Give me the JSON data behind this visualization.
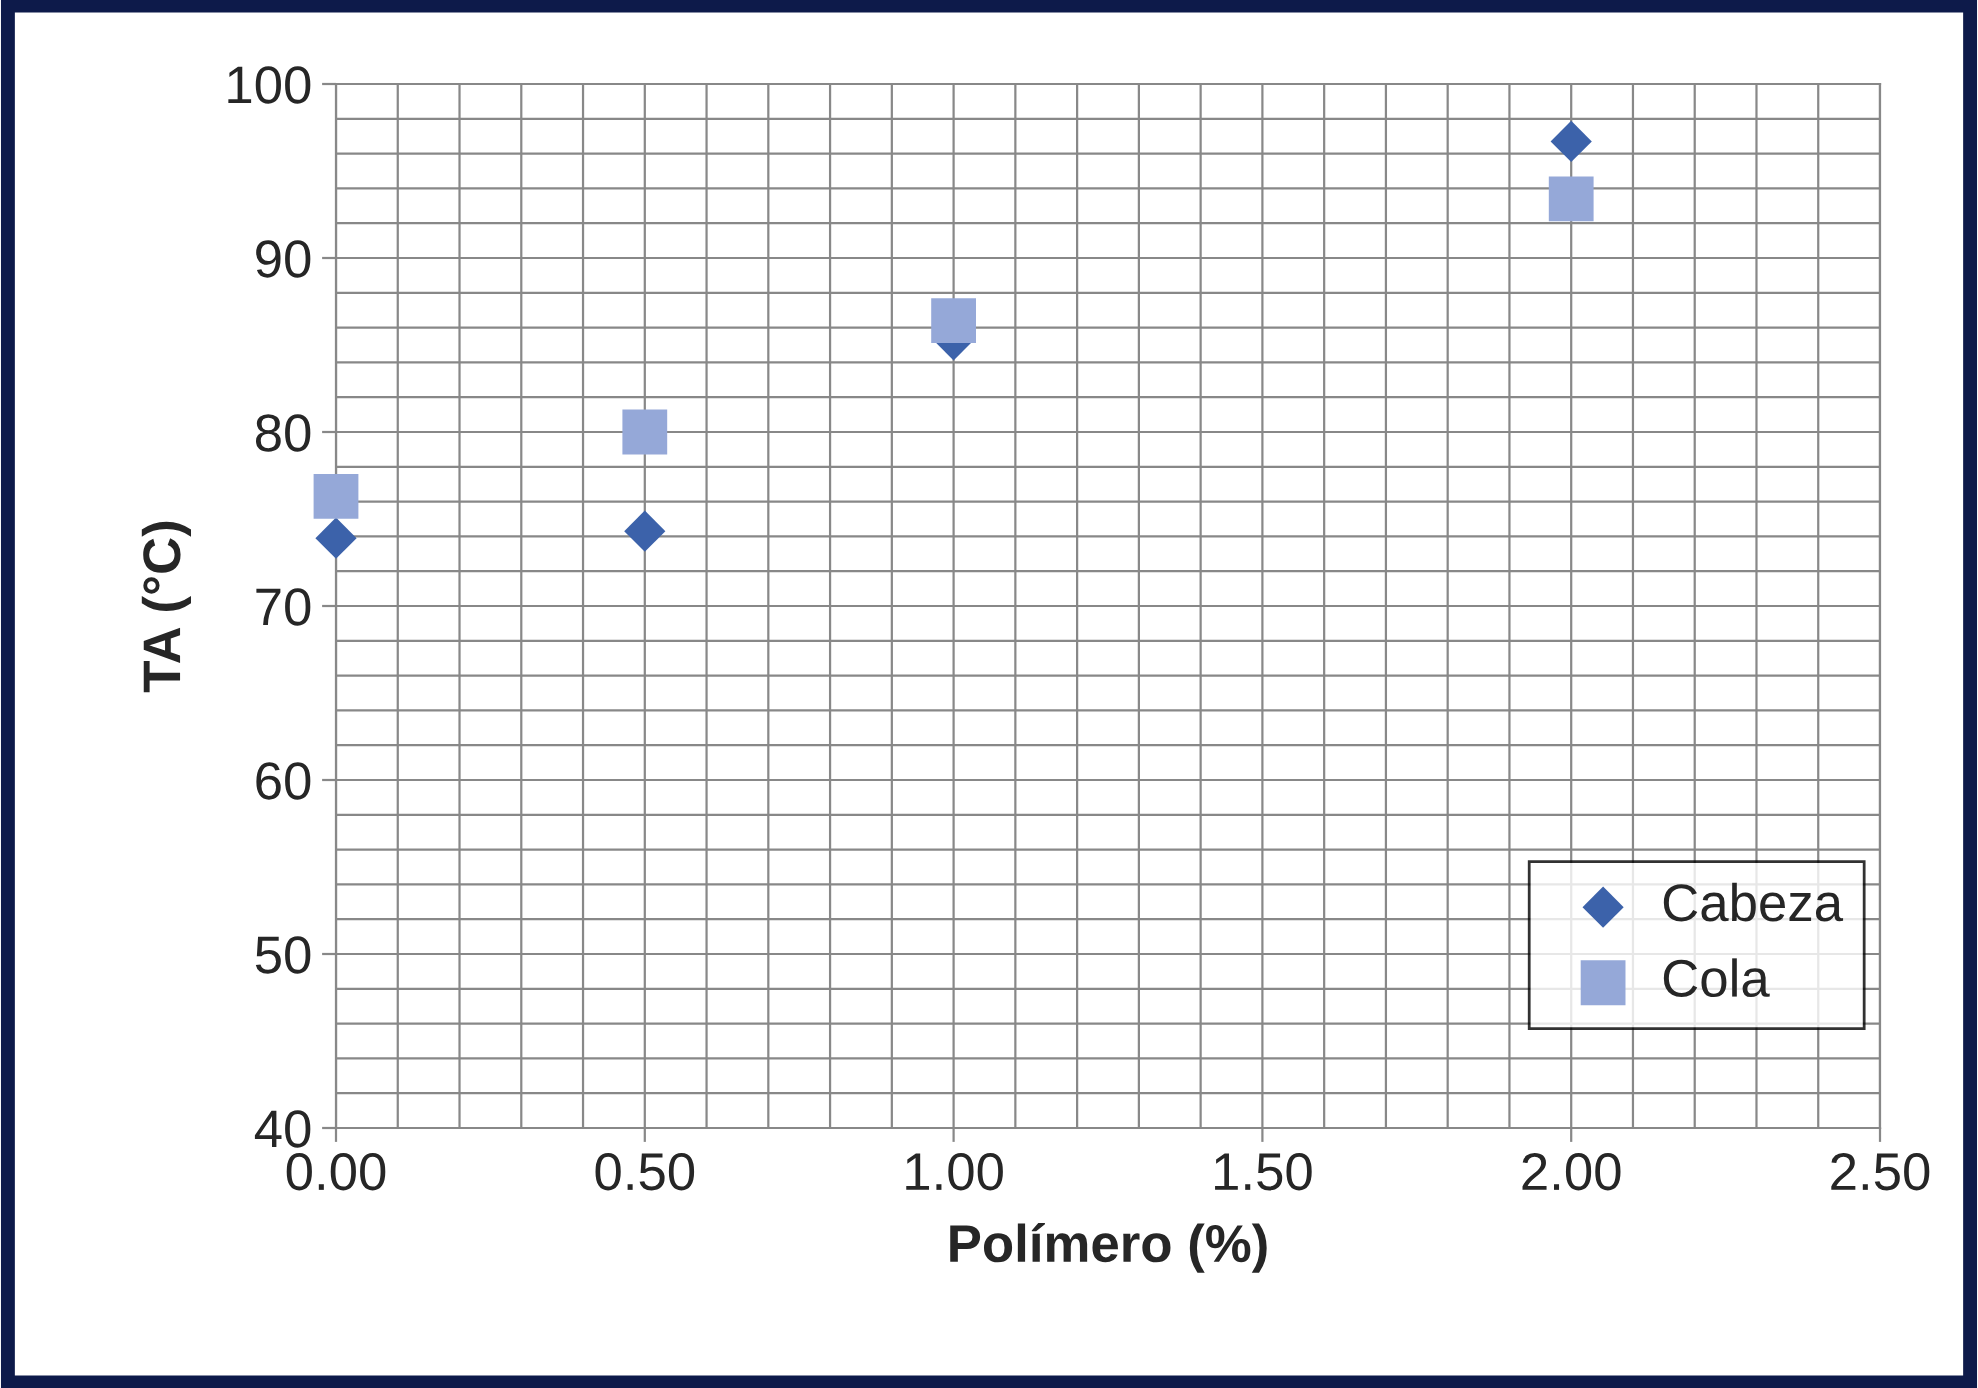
{
  "chart_data": {
    "type": "scatter",
    "xlabel": "Polímero (%)",
    "ylabel": "TA (°C)",
    "x": [
      0,
      0.5,
      1.0,
      2.0
    ],
    "series": [
      {
        "name": "Cabeza",
        "color": "#3c62aa",
        "marker": "diamond",
        "values": [
          73.9,
          74.3,
          85.3,
          96.7
        ]
      },
      {
        "name": "Cola",
        "color": "#95a8d8",
        "marker": "square",
        "values": [
          76.3,
          80.0,
          86.4,
          93.4
        ]
      }
    ],
    "xlim": [
      0,
      2.5
    ],
    "xticks": [
      {
        "value": 0,
        "label": "0.00"
      },
      {
        "value": 0.5,
        "label": "0.50"
      },
      {
        "value": 1.0,
        "label": "1.00"
      },
      {
        "value": 1.5,
        "label": "1.50"
      },
      {
        "value": 2.0,
        "label": "2.00"
      },
      {
        "value": 2.5,
        "label": "2.50"
      }
    ],
    "ylim": [
      40,
      100
    ],
    "yticks": [
      40,
      50,
      60,
      70,
      80,
      90,
      100
    ],
    "grid": true,
    "legend": "lower right"
  }
}
